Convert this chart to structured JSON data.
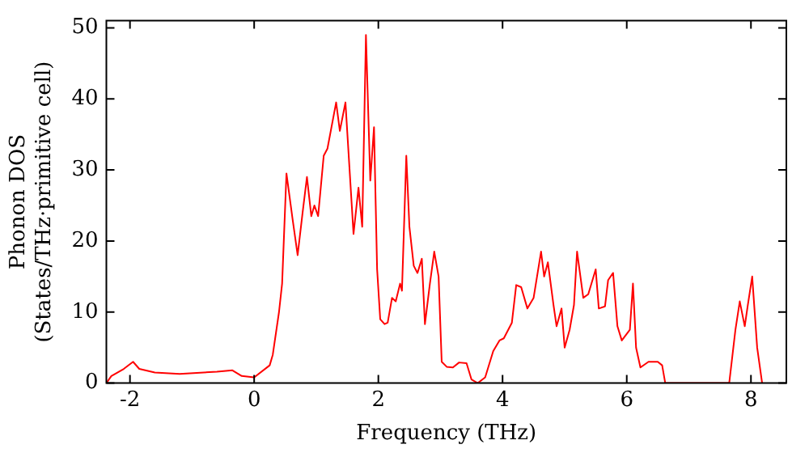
{
  "chart_data": {
    "type": "line",
    "xlabel": "Frequency (THz)",
    "ylabel": "Phonon DOS\n(States/THz·primitive cell)",
    "xlim": [
      -2.38,
      8.57
    ],
    "ylim": [
      0,
      51
    ],
    "xticks": [
      -2,
      0,
      2,
      4,
      6,
      8
    ],
    "yticks": [
      0,
      10,
      20,
      30,
      40,
      50
    ],
    "grid": false,
    "legend": false,
    "marker": "none",
    "line_style": "solid",
    "series": [
      {
        "color": "#ff0000",
        "x": [
          -2.38,
          -2.3,
          -2.1,
          -1.95,
          -1.85,
          -1.6,
          -1.2,
          -0.6,
          -0.35,
          -0.2,
          0,
          0.25,
          0.3,
          0.4,
          0.45,
          0.52,
          0.62,
          0.7,
          0.78,
          0.85,
          0.92,
          0.97,
          1.03,
          1.12,
          1.18,
          1.32,
          1.38,
          1.47,
          1.6,
          1.68,
          1.74,
          1.8,
          1.87,
          1.93,
          1.98,
          2.03,
          2.1,
          2.15,
          2.22,
          2.28,
          2.35,
          2.38,
          2.45,
          2.5,
          2.57,
          2.63,
          2.7,
          2.75,
          2.83,
          2.9,
          2.97,
          3.02,
          3.1,
          3.2,
          3.3,
          3.42,
          3.5,
          3.6,
          3.72,
          3.85,
          3.95,
          4.02,
          4.15,
          4.22,
          4.3,
          4.4,
          4.5,
          4.62,
          4.67,
          4.73,
          4.82,
          4.87,
          4.95,
          5.0,
          5.08,
          5.15,
          5.2,
          5.3,
          5.38,
          5.5,
          5.55,
          5.65,
          5.7,
          5.78,
          5.85,
          5.92,
          6.05,
          6.1,
          6.15,
          6.22,
          6.35,
          6.5,
          6.57,
          6.62,
          7.65,
          7.75,
          7.82,
          7.9,
          7.95,
          8.02,
          8.1,
          8.18
        ],
        "values": [
          0,
          1,
          2,
          3,
          2,
          1.5,
          1.3,
          1.6,
          1.8,
          1,
          0.8,
          2.5,
          4,
          10,
          14,
          29.5,
          23,
          18,
          24,
          29,
          23.5,
          25,
          23.5,
          32,
          33,
          39.5,
          35.5,
          39.5,
          21,
          27.5,
          22,
          49,
          28.5,
          36,
          16,
          9,
          8.3,
          8.5,
          12,
          11.5,
          14,
          13,
          32,
          22,
          16.5,
          15.5,
          17.5,
          8.3,
          14,
          18.5,
          15,
          3,
          2.3,
          2.2,
          2.9,
          2.8,
          0.5,
          0,
          0.8,
          4.5,
          6,
          6.3,
          8.5,
          13.8,
          13.5,
          10.5,
          12,
          18.5,
          15,
          17,
          11,
          8,
          10.5,
          5,
          7.5,
          11,
          18.5,
          12,
          12.5,
          16,
          10.5,
          10.8,
          14.5,
          15.5,
          8,
          6,
          7.5,
          14,
          5,
          2.2,
          3,
          3,
          2.5,
          0,
          0,
          7.5,
          11.5,
          8,
          11,
          15,
          5,
          0
        ]
      }
    ]
  }
}
